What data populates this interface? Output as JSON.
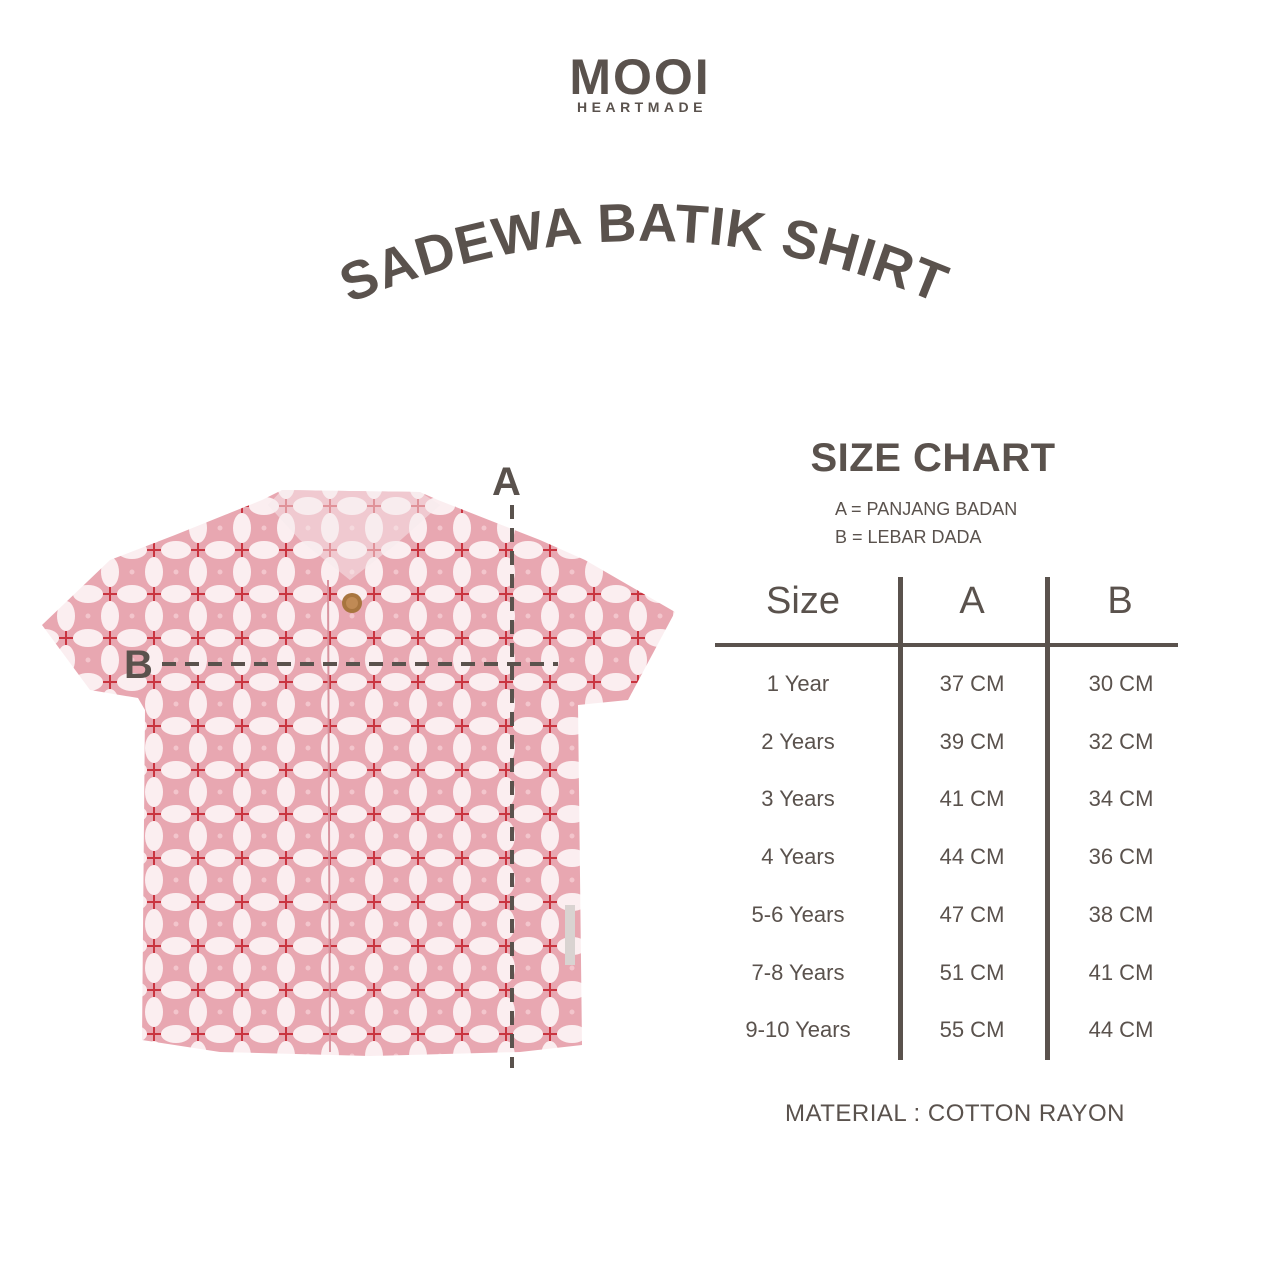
{
  "brand": {
    "name": "MOOI",
    "tagline": "HEARTMADE"
  },
  "product_title": "SADEWA BATIK SHIRT",
  "diagram": {
    "label_a": "A",
    "label_b": "B"
  },
  "size_chart": {
    "title": "SIZE CHART",
    "legend": [
      "A = PANJANG BADAN",
      "B = LEBAR DADA"
    ],
    "headers": [
      "Size",
      "A",
      "B"
    ],
    "rows": [
      [
        "1 Year",
        "37 CM",
        "30 CM"
      ],
      [
        "2 Years",
        "39 CM",
        "32 CM"
      ],
      [
        "3 Years",
        "41 CM",
        "34 CM"
      ],
      [
        "4 Years",
        "44 CM",
        "36 CM"
      ],
      [
        "5-6 Years",
        "47 CM",
        "38 CM"
      ],
      [
        "7-8 Years",
        "51 CM",
        "41 CM"
      ],
      [
        "9-10 Years",
        "55 CM",
        "44 CM"
      ]
    ]
  },
  "material": "MATERIAL : COTTON RAYON",
  "colors": {
    "text": "#5a524d",
    "shirt_pink": "#e8a7b1",
    "shirt_red": "#c9343f"
  }
}
